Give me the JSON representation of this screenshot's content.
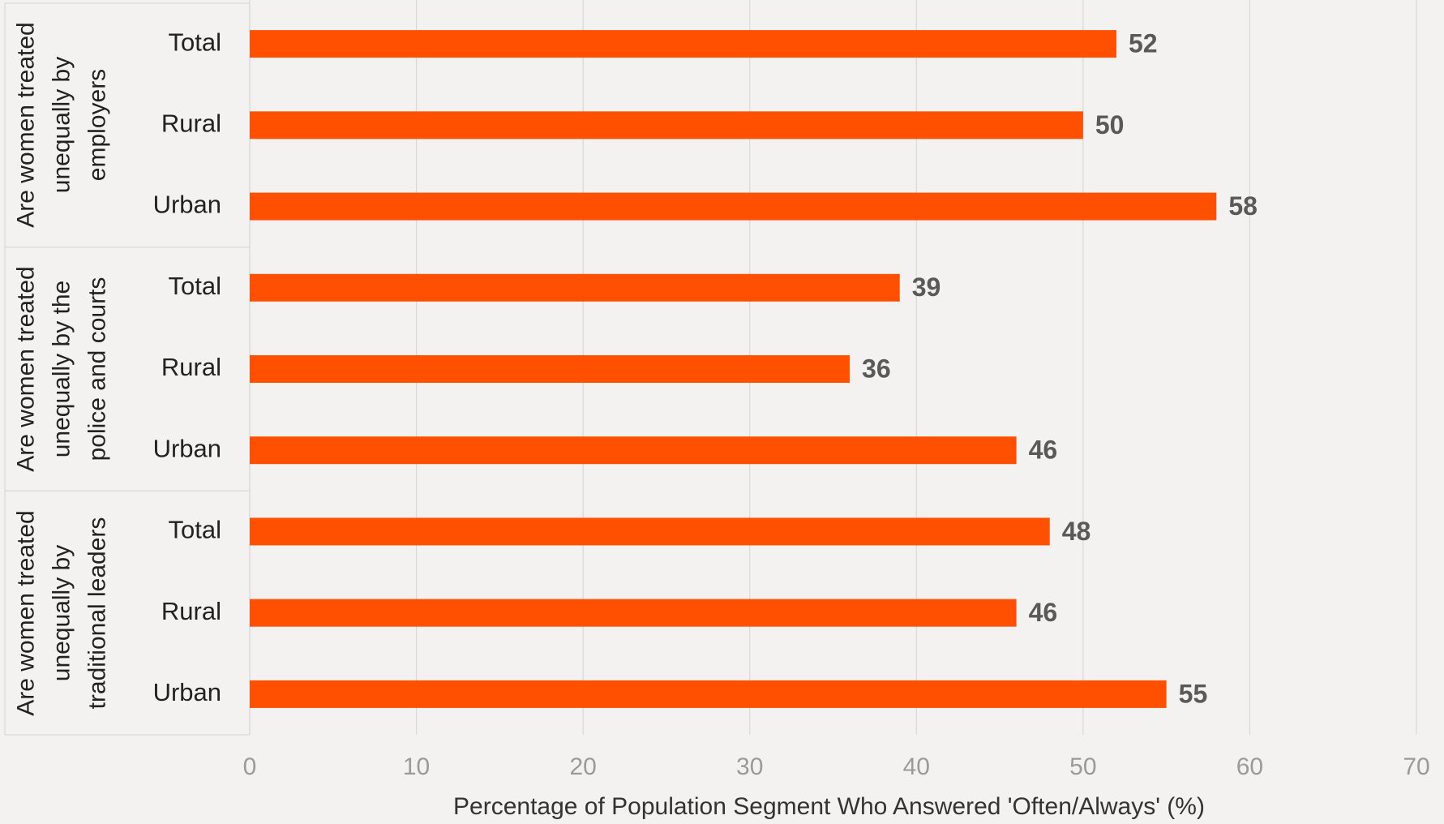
{
  "chart_data": {
    "type": "bar",
    "orientation": "horizontal",
    "groups": [
      {
        "label": "Are women treated unequally by employers",
        "categories": [
          "Total",
          "Rural",
          "Urban"
        ],
        "values": [
          52,
          50,
          58
        ]
      },
      {
        "label": "Are women treated unequally by the police and courts",
        "categories": [
          "Total",
          "Rural",
          "Urban"
        ],
        "values": [
          39,
          36,
          46
        ]
      },
      {
        "label": "Are women treated unequally by traditional leaders",
        "categories": [
          "Total",
          "Rural",
          "Urban"
        ],
        "values": [
          48,
          46,
          55
        ]
      }
    ],
    "color": "#ff4f00",
    "xlim": [
      0,
      70
    ],
    "xticks": [
      0,
      10,
      20,
      30,
      40,
      50,
      60,
      70
    ],
    "x_label": "Percentage of Population Segment Who Answered 'Often/Always' (%)",
    "grid": true
  }
}
